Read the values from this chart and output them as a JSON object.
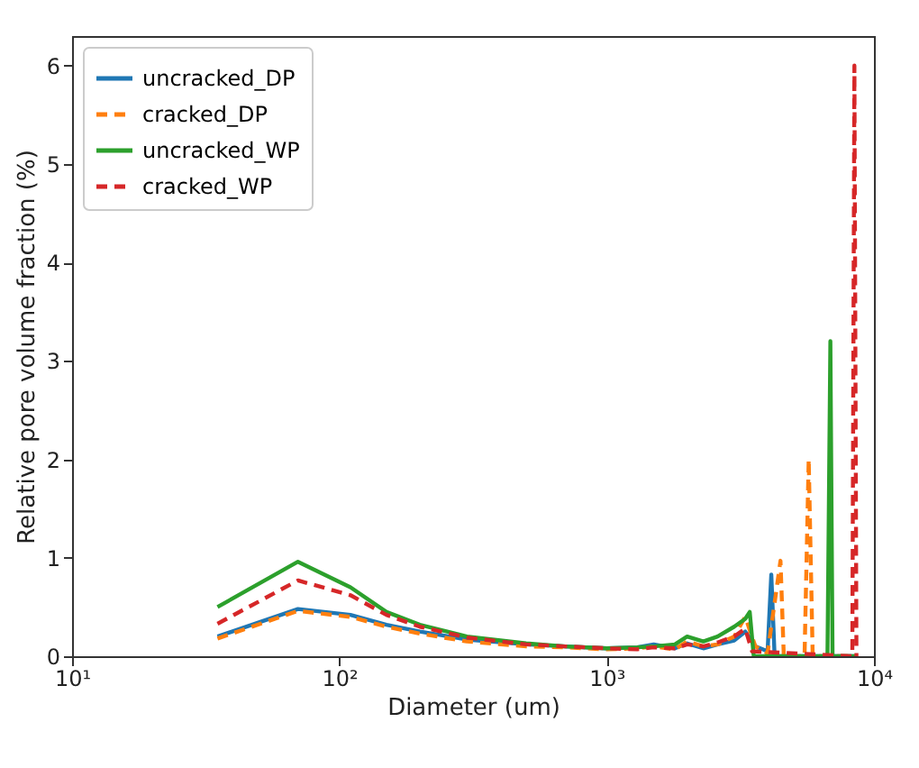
{
  "chart_data": {
    "type": "line",
    "xlabel": "Diameter (um)",
    "ylabel": "Relative pore volume fraction (%)",
    "log": "x",
    "xlim": [
      10,
      10000
    ],
    "xticks": [
      {
        "value": 10,
        "label": "10¹"
      },
      {
        "value": 100,
        "label": "10²"
      },
      {
        "value": 1000,
        "label": "10³"
      },
      {
        "value": 10000,
        "label": "10⁴"
      }
    ],
    "ylim": [
      0,
      6.3
    ],
    "yticks": [
      0,
      1,
      2,
      3,
      4,
      5,
      6
    ],
    "grid": false,
    "legend": "top left",
    "marker": "none",
    "series": [
      {
        "name": "uncracked_DP",
        "color": "#1f77b4",
        "line_style": "solid",
        "x": [
          35,
          70,
          110,
          150,
          200,
          300,
          500,
          700,
          1000,
          1300,
          1500,
          1800,
          2000,
          2300,
          2600,
          3000,
          3300,
          3600,
          4000,
          4130,
          4250,
          8500
        ],
        "values": [
          0.2,
          0.48,
          0.42,
          0.32,
          0.25,
          0.17,
          0.12,
          0.1,
          0.08,
          0.09,
          0.12,
          0.08,
          0.13,
          0.08,
          0.12,
          0.16,
          0.25,
          0.1,
          0.05,
          0.83,
          0,
          0
        ]
      },
      {
        "name": "cracked_DP",
        "color": "#ff7f0e",
        "line_style": "dashed",
        "x": [
          35,
          70,
          110,
          150,
          200,
          300,
          500,
          700,
          1000,
          1300,
          1500,
          1800,
          2000,
          2300,
          2600,
          3000,
          3300,
          3600,
          4000,
          4470,
          4600,
          5500,
          5700,
          5900,
          8500
        ],
        "values": [
          0.18,
          0.46,
          0.4,
          0.3,
          0.23,
          0.15,
          0.1,
          0.09,
          0.07,
          0.08,
          0.1,
          0.07,
          0.15,
          0.1,
          0.12,
          0.2,
          0.4,
          0.1,
          0.03,
          0.97,
          0,
          0,
          2.0,
          0,
          0
        ]
      },
      {
        "name": "uncracked_WP",
        "color": "#2ca02c",
        "line_style": "solid",
        "x": [
          35,
          70,
          110,
          150,
          200,
          300,
          500,
          700,
          1000,
          1300,
          1500,
          1800,
          2000,
          2300,
          2600,
          3000,
          3300,
          3430,
          3550,
          6700,
          6870,
          7000,
          8500
        ],
        "values": [
          0.5,
          0.96,
          0.7,
          0.45,
          0.32,
          0.2,
          0.13,
          0.1,
          0.08,
          0.09,
          0.1,
          0.12,
          0.2,
          0.15,
          0.2,
          0.3,
          0.38,
          0.45,
          0,
          0,
          3.2,
          0,
          0
        ]
      },
      {
        "name": "cracked_WP",
        "color": "#d62728",
        "line_style": "dashed",
        "x": [
          35,
          70,
          110,
          150,
          200,
          300,
          500,
          700,
          1000,
          1300,
          1500,
          1800,
          2000,
          2300,
          2600,
          3000,
          3300,
          3500,
          8300,
          8450,
          8600
        ],
        "values": [
          0.33,
          0.77,
          0.62,
          0.42,
          0.3,
          0.19,
          0.12,
          0.1,
          0.08,
          0.07,
          0.09,
          0.08,
          0.12,
          0.1,
          0.14,
          0.2,
          0.28,
          0.05,
          0,
          6.0,
          0
        ]
      }
    ]
  }
}
